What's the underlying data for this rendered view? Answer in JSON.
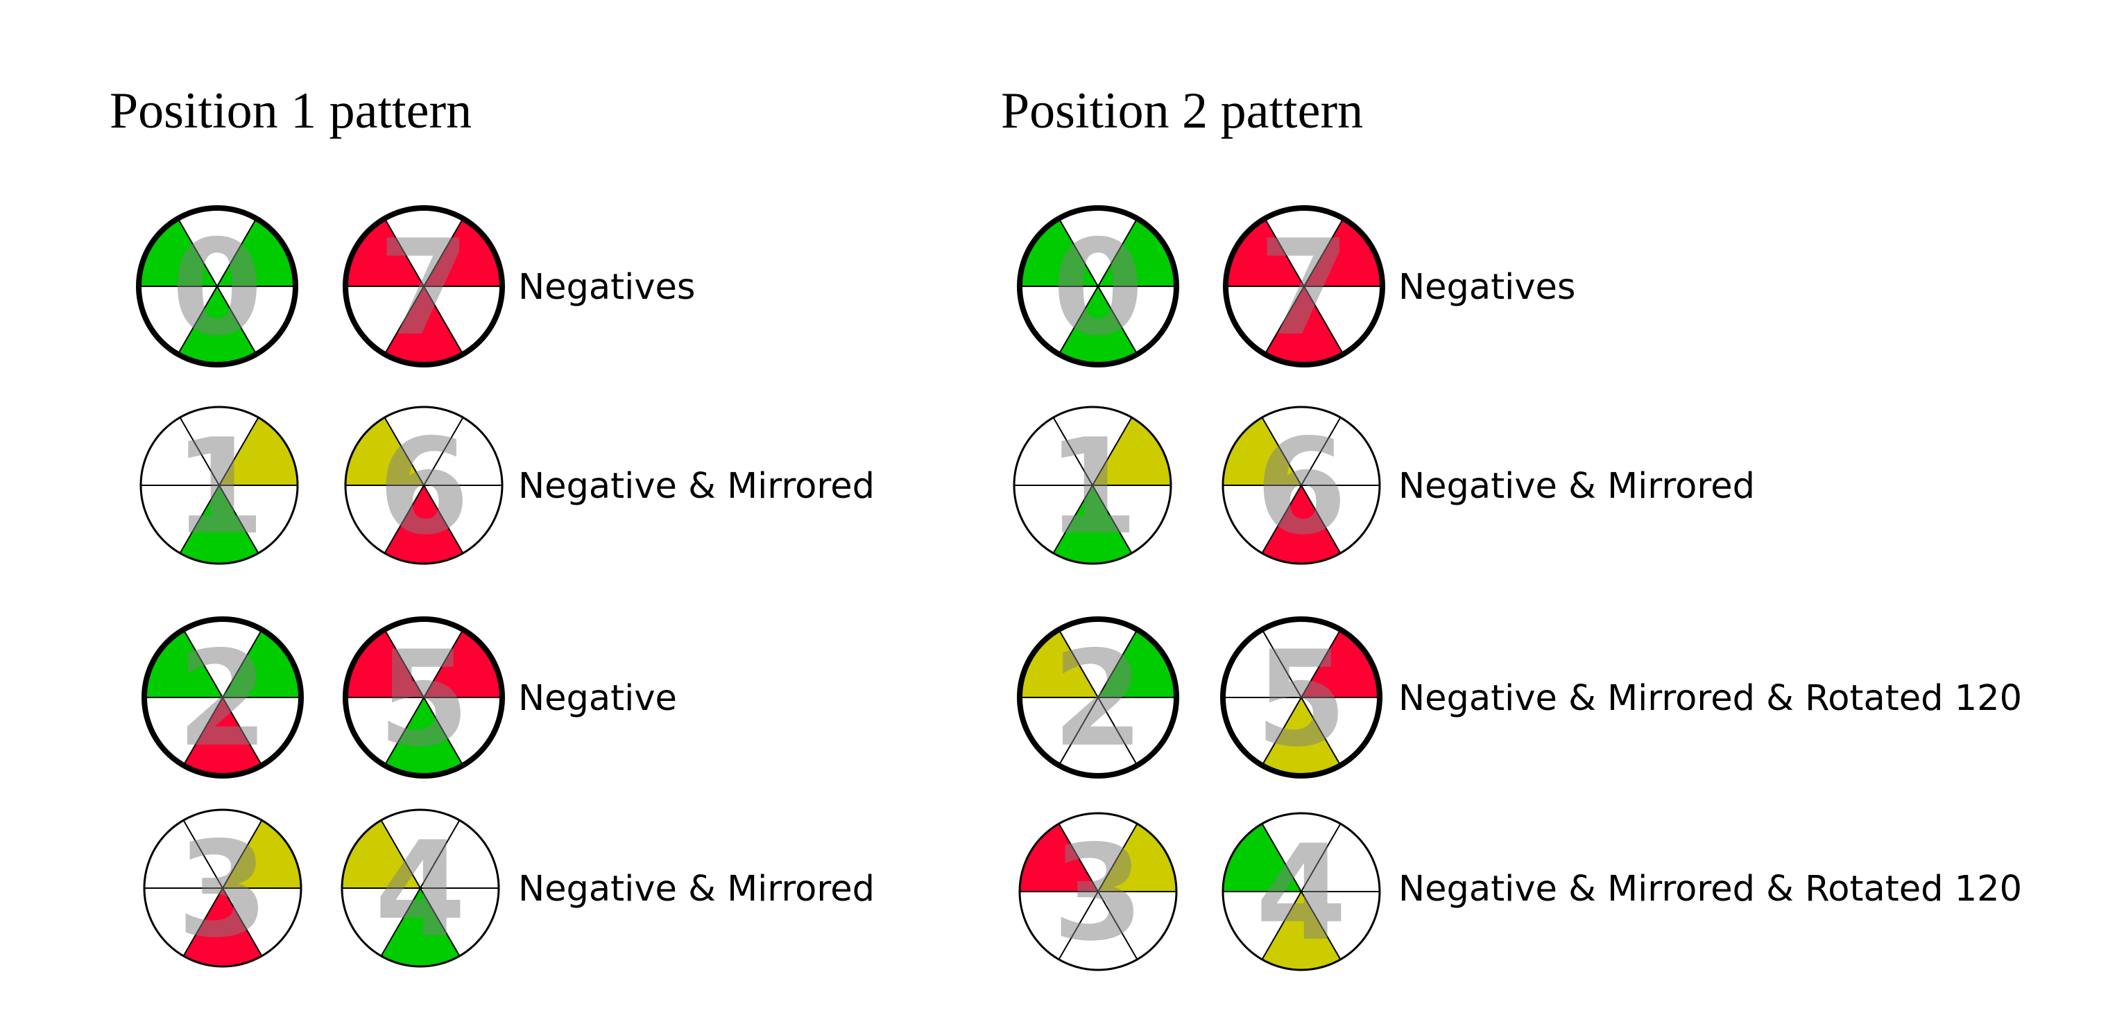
{
  "colors": {
    "green": "#00cc00",
    "red": "#ff0033",
    "yellow": "#cccc00"
  },
  "panels": [
    {
      "title": "Position 1 pattern",
      "rows": [
        {
          "label": "Negatives",
          "icons": [
            {
              "digit": "0",
              "bold": true,
              "sectors": [
                "white",
                "green",
                "white",
                "green",
                "white",
                "green"
              ]
            },
            {
              "digit": "7",
              "bold": true,
              "sectors": [
                "white",
                "red",
                "white",
                "red",
                "white",
                "red"
              ]
            }
          ]
        },
        {
          "label": "Negative & Mirrored",
          "icons": [
            {
              "digit": "1",
              "bold": false,
              "sectors": [
                "white",
                "yellow",
                "white",
                "white",
                "white",
                "green"
              ]
            },
            {
              "digit": "6",
              "bold": false,
              "sectors": [
                "white",
                "white",
                "white",
                "yellow",
                "white",
                "red"
              ]
            }
          ]
        },
        {
          "label": "Negative",
          "icons": [
            {
              "digit": "2",
              "bold": true,
              "sectors": [
                "white",
                "green",
                "white",
                "green",
                "white",
                "red"
              ]
            },
            {
              "digit": "5",
              "bold": true,
              "sectors": [
                "white",
                "red",
                "white",
                "red",
                "white",
                "green"
              ]
            }
          ]
        },
        {
          "label": "Negative & Mirrored",
          "icons": [
            {
              "digit": "3",
              "bold": false,
              "sectors": [
                "white",
                "yellow",
                "white",
                "white",
                "white",
                "red"
              ]
            },
            {
              "digit": "4",
              "bold": false,
              "sectors": [
                "white",
                "white",
                "white",
                "yellow",
                "white",
                "green"
              ]
            }
          ]
        }
      ]
    },
    {
      "title": "Position 2 pattern",
      "rows": [
        {
          "label": "Negatives",
          "icons": [
            {
              "digit": "0",
              "bold": true,
              "sectors": [
                "white",
                "green",
                "white",
                "green",
                "white",
                "green"
              ]
            },
            {
              "digit": "7",
              "bold": true,
              "sectors": [
                "white",
                "red",
                "white",
                "red",
                "white",
                "red"
              ]
            }
          ]
        },
        {
          "label": "Negative & Mirrored",
          "icons": [
            {
              "digit": "1",
              "bold": false,
              "sectors": [
                "white",
                "yellow",
                "white",
                "white",
                "white",
                "green"
              ]
            },
            {
              "digit": "6",
              "bold": false,
              "sectors": [
                "white",
                "white",
                "white",
                "yellow",
                "white",
                "red"
              ]
            }
          ]
        },
        {
          "label": "Negative & Mirrored & Rotated 120",
          "icons": [
            {
              "digit": "2",
              "bold": true,
              "sectors": [
                "white",
                "green",
                "white",
                "yellow",
                "white",
                "white"
              ]
            },
            {
              "digit": "5",
              "bold": true,
              "sectors": [
                "white",
                "red",
                "white",
                "white",
                "white",
                "yellow"
              ]
            }
          ]
        },
        {
          "label": "Negative & Mirrored & Rotated 120",
          "icons": [
            {
              "digit": "3",
              "bold": false,
              "sectors": [
                "white",
                "yellow",
                "white",
                "red",
                "white",
                "white"
              ]
            },
            {
              "digit": "4",
              "bold": false,
              "sectors": [
                "white",
                "white",
                "white",
                "green",
                "white",
                "yellow"
              ]
            }
          ]
        }
      ]
    }
  ]
}
